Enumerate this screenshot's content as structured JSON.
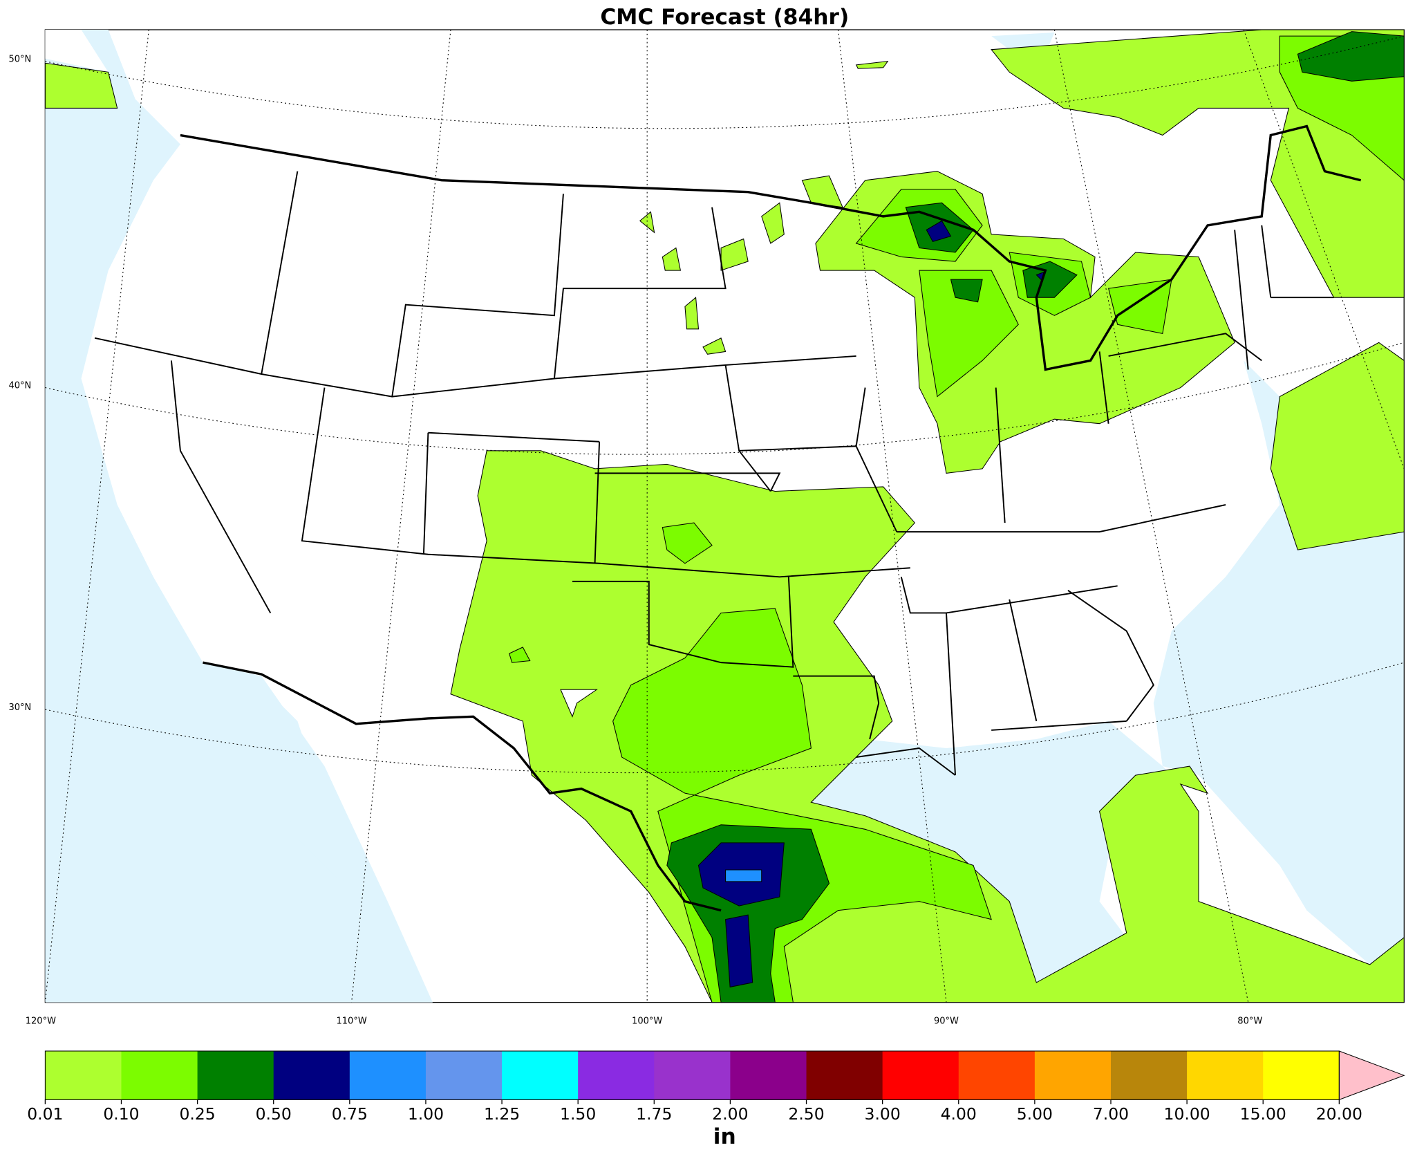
{
  "title": "CMC Forecast (84hr)",
  "lat_labels": [
    "50°N",
    "40°N",
    "30°N"
  ],
  "lon_labels": [
    "120°W",
    "110°W",
    "100°W",
    "90°W",
    "80°W"
  ],
  "colorbar": {
    "levels": [
      "0.01",
      "0.10",
      "0.25",
      "0.50",
      "0.75",
      "1.00",
      "1.25",
      "1.50",
      "1.75",
      "2.00",
      "2.50",
      "3.00",
      "4.00",
      "5.00",
      "7.00",
      "10.00",
      "15.00",
      "20.00"
    ],
    "colors": [
      "#adff2f",
      "#7cfc00",
      "#008000",
      "#000080",
      "#1e90ff",
      "#6495ed",
      "#00ffff",
      "#8a2be2",
      "#9932cc",
      "#8b008b",
      "#800000",
      "#ff0000",
      "#ff4500",
      "#ffa500",
      "#b8860b",
      "#ffd700",
      "#ffff00",
      "#ffc0cb"
    ],
    "unit": "in"
  }
}
